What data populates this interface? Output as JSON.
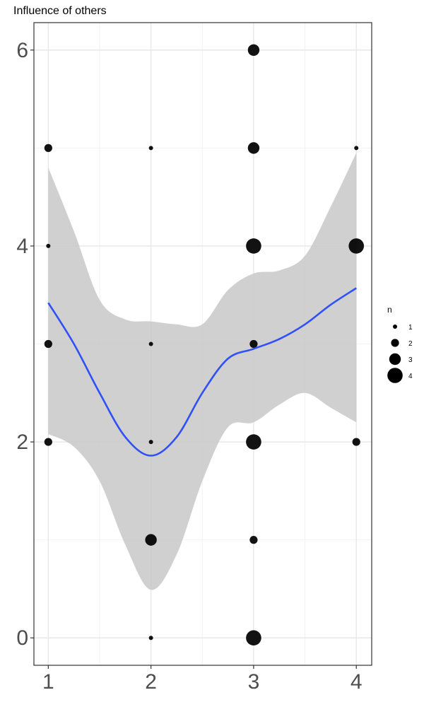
{
  "chart_data": {
    "type": "scatter",
    "title": "Influence of others",
    "xlabel": "",
    "ylabel": "",
    "xlim": [
      0.86,
      4.15
    ],
    "ylim": [
      -0.28,
      6.28
    ],
    "x_ticks": [
      1,
      2,
      3,
      4
    ],
    "y_ticks": [
      0,
      2,
      4,
      6
    ],
    "x_minor_grid": [
      1.5,
      2.5,
      3.5
    ],
    "y_minor_grid": [
      1,
      3,
      5
    ],
    "grid": true,
    "legend_position": "right",
    "legend": {
      "title": "n",
      "items": [
        {
          "label": "1",
          "n": 1
        },
        {
          "label": "2",
          "n": 2
        },
        {
          "label": "3",
          "n": 3
        },
        {
          "label": "4",
          "n": 4
        }
      ]
    },
    "points": [
      {
        "x": 1,
        "y": 5,
        "n": 2
      },
      {
        "x": 1,
        "y": 4,
        "n": 1
      },
      {
        "x": 1,
        "y": 3,
        "n": 2
      },
      {
        "x": 1,
        "y": 2,
        "n": 2
      },
      {
        "x": 2,
        "y": 5,
        "n": 1
      },
      {
        "x": 2,
        "y": 3,
        "n": 1
      },
      {
        "x": 2,
        "y": 2,
        "n": 1
      },
      {
        "x": 2,
        "y": 1,
        "n": 3
      },
      {
        "x": 2,
        "y": 0,
        "n": 1
      },
      {
        "x": 3,
        "y": 6,
        "n": 3
      },
      {
        "x": 3,
        "y": 5,
        "n": 3
      },
      {
        "x": 3,
        "y": 4,
        "n": 4
      },
      {
        "x": 3,
        "y": 3,
        "n": 2
      },
      {
        "x": 3,
        "y": 2,
        "n": 4
      },
      {
        "x": 3,
        "y": 1,
        "n": 2
      },
      {
        "x": 3,
        "y": 0,
        "n": 4
      },
      {
        "x": 4,
        "y": 5,
        "n": 1
      },
      {
        "x": 4,
        "y": 4,
        "n": 4
      },
      {
        "x": 4,
        "y": 2,
        "n": 2
      }
    ],
    "smooth": {
      "color": "#3050f8",
      "band_color": "#c8c8c8",
      "x": [
        1.0,
        1.25,
        1.5,
        1.75,
        2.0,
        2.25,
        2.5,
        2.75,
        3.0,
        3.25,
        3.5,
        3.75,
        4.0
      ],
      "y": [
        3.42,
        3.0,
        2.5,
        2.05,
        1.86,
        2.05,
        2.5,
        2.85,
        2.95,
        3.05,
        3.2,
        3.4,
        3.57
      ],
      "lower": [
        2.08,
        1.95,
        1.6,
        0.95,
        0.49,
        0.85,
        1.6,
        2.15,
        2.2,
        2.38,
        2.5,
        2.35,
        2.2
      ],
      "upper": [
        4.8,
        4.15,
        3.45,
        3.25,
        3.23,
        3.2,
        3.2,
        3.55,
        3.72,
        3.75,
        3.9,
        4.4,
        4.95
      ]
    }
  }
}
